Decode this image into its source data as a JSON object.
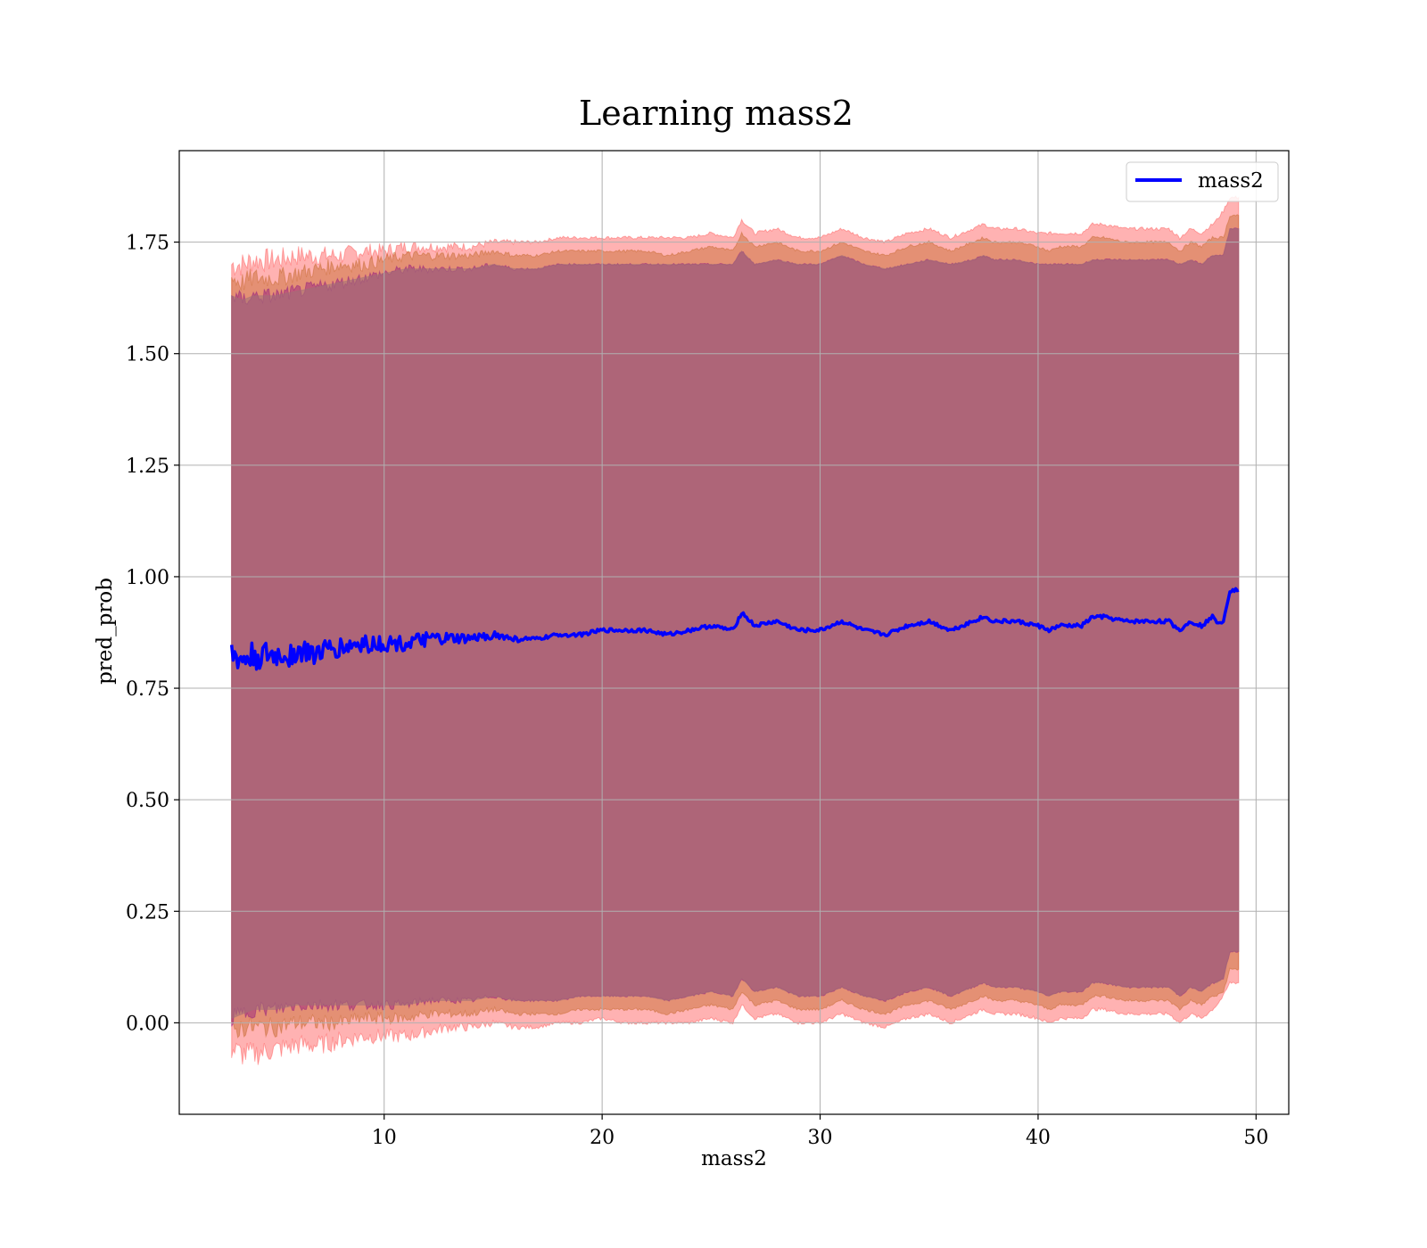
{
  "chart_data": {
    "type": "line",
    "title": "Learning mass2",
    "xlabel": "mass2",
    "ylabel": "pred_prob",
    "xlim": [
      0.6,
      51.5
    ],
    "ylim": [
      -0.205,
      1.955
    ],
    "xticks": [
      10,
      20,
      30,
      40,
      50
    ],
    "xtick_labels": [
      "10",
      "20",
      "30",
      "40",
      "50"
    ],
    "yticks": [
      0.0,
      0.25,
      0.5,
      0.75,
      1.0,
      1.25,
      1.5,
      1.75
    ],
    "ytick_labels": [
      "0.00",
      "0.25",
      "0.50",
      "0.75",
      "1.00",
      "1.25",
      "1.50",
      "1.75"
    ],
    "grid": true,
    "legend": {
      "placement": "upper right"
    },
    "series": [
      {
        "name": "mass2",
        "color": "#0000ff",
        "x": [
          3.0,
          3.5,
          4.0,
          5.0,
          6.0,
          7.0,
          8.0,
          9.0,
          10.0,
          11.0,
          12.0,
          13.0,
          14.0,
          15.0,
          16.0,
          17.0,
          18.0,
          19.0,
          20.0,
          21.0,
          22.0,
          23.0,
          24.0,
          25.0,
          26.0,
          26.4,
          27.0,
          28.0,
          29.0,
          30.0,
          31.0,
          32.0,
          33.0,
          34.0,
          35.0,
          36.0,
          37.0,
          37.5,
          38.0,
          39.0,
          40.0,
          40.5,
          41.0,
          42.0,
          42.5,
          43.0,
          44.0,
          45.0,
          46.0,
          46.5,
          47.0,
          47.5,
          48.0,
          48.2,
          48.5,
          48.8,
          49.2
        ],
        "y": [
          0.82,
          0.81,
          0.82,
          0.82,
          0.83,
          0.83,
          0.84,
          0.85,
          0.85,
          0.85,
          0.86,
          0.86,
          0.86,
          0.87,
          0.86,
          0.86,
          0.87,
          0.87,
          0.88,
          0.88,
          0.88,
          0.87,
          0.88,
          0.89,
          0.88,
          0.92,
          0.89,
          0.9,
          0.88,
          0.88,
          0.9,
          0.88,
          0.87,
          0.89,
          0.9,
          0.88,
          0.9,
          0.91,
          0.9,
          0.9,
          0.89,
          0.88,
          0.89,
          0.89,
          0.91,
          0.91,
          0.9,
          0.9,
          0.9,
          0.88,
          0.9,
          0.89,
          0.91,
          0.9,
          0.9,
          0.97,
          0.97
        ],
        "band_1sd_upper": [
          1.63,
          1.62,
          1.63,
          1.63,
          1.64,
          1.65,
          1.66,
          1.67,
          1.68,
          1.69,
          1.69,
          1.69,
          1.69,
          1.7,
          1.69,
          1.69,
          1.7,
          1.7,
          1.7,
          1.7,
          1.7,
          1.7,
          1.7,
          1.7,
          1.7,
          1.73,
          1.7,
          1.71,
          1.7,
          1.7,
          1.72,
          1.7,
          1.69,
          1.7,
          1.71,
          1.7,
          1.71,
          1.72,
          1.71,
          1.71,
          1.7,
          1.7,
          1.7,
          1.7,
          1.71,
          1.71,
          1.71,
          1.71,
          1.71,
          1.7,
          1.71,
          1.7,
          1.72,
          1.72,
          1.72,
          1.78,
          1.78
        ],
        "band_1sd_lower": [
          0.01,
          0.02,
          0.03,
          0.03,
          0.04,
          0.04,
          0.04,
          0.04,
          0.04,
          0.04,
          0.05,
          0.05,
          0.05,
          0.06,
          0.05,
          0.05,
          0.05,
          0.06,
          0.06,
          0.06,
          0.06,
          0.05,
          0.06,
          0.07,
          0.06,
          0.1,
          0.07,
          0.08,
          0.06,
          0.06,
          0.08,
          0.06,
          0.05,
          0.07,
          0.08,
          0.06,
          0.08,
          0.09,
          0.08,
          0.08,
          0.07,
          0.06,
          0.07,
          0.07,
          0.09,
          0.09,
          0.08,
          0.08,
          0.08,
          0.06,
          0.08,
          0.07,
          0.09,
          0.09,
          0.1,
          0.16,
          0.16
        ],
        "band_2sd_upper": [
          1.67,
          1.66,
          1.67,
          1.67,
          1.68,
          1.69,
          1.7,
          1.7,
          1.71,
          1.72,
          1.72,
          1.72,
          1.72,
          1.73,
          1.72,
          1.72,
          1.73,
          1.73,
          1.73,
          1.73,
          1.73,
          1.72,
          1.73,
          1.74,
          1.73,
          1.77,
          1.74,
          1.75,
          1.73,
          1.73,
          1.75,
          1.73,
          1.72,
          1.74,
          1.75,
          1.73,
          1.75,
          1.76,
          1.75,
          1.75,
          1.74,
          1.73,
          1.74,
          1.74,
          1.76,
          1.76,
          1.75,
          1.75,
          1.75,
          1.73,
          1.75,
          1.74,
          1.76,
          1.76,
          1.76,
          1.81,
          1.81
        ],
        "band_2sd_lower": [
          -0.02,
          -0.01,
          -0.01,
          -0.01,
          0.0,
          0.0,
          0.0,
          0.01,
          0.01,
          0.01,
          0.02,
          0.02,
          0.02,
          0.03,
          0.02,
          0.02,
          0.02,
          0.03,
          0.03,
          0.03,
          0.03,
          0.02,
          0.03,
          0.04,
          0.03,
          0.07,
          0.04,
          0.05,
          0.03,
          0.03,
          0.05,
          0.03,
          0.02,
          0.04,
          0.05,
          0.03,
          0.05,
          0.06,
          0.05,
          0.05,
          0.04,
          0.03,
          0.04,
          0.04,
          0.06,
          0.06,
          0.05,
          0.05,
          0.05,
          0.03,
          0.05,
          0.04,
          0.06,
          0.06,
          0.07,
          0.12,
          0.12
        ],
        "band_3sd_upper": [
          1.7,
          1.7,
          1.71,
          1.71,
          1.72,
          1.72,
          1.72,
          1.73,
          1.73,
          1.74,
          1.74,
          1.74,
          1.74,
          1.75,
          1.75,
          1.75,
          1.76,
          1.76,
          1.76,
          1.76,
          1.76,
          1.76,
          1.76,
          1.77,
          1.76,
          1.8,
          1.77,
          1.78,
          1.76,
          1.76,
          1.78,
          1.76,
          1.75,
          1.77,
          1.78,
          1.76,
          1.78,
          1.79,
          1.78,
          1.78,
          1.77,
          1.77,
          1.77,
          1.77,
          1.79,
          1.79,
          1.78,
          1.78,
          1.78,
          1.76,
          1.78,
          1.77,
          1.79,
          1.8,
          1.82,
          1.85,
          1.85
        ],
        "band_3sd_lower": [
          -0.06,
          -0.07,
          -0.07,
          -0.06,
          -0.05,
          -0.05,
          -0.04,
          -0.03,
          -0.03,
          -0.03,
          -0.02,
          -0.01,
          -0.01,
          0.0,
          -0.01,
          -0.01,
          0.0,
          0.0,
          0.01,
          0.0,
          0.0,
          0.0,
          0.0,
          0.01,
          0.0,
          0.04,
          0.01,
          0.02,
          0.0,
          0.0,
          0.02,
          0.0,
          -0.01,
          0.01,
          0.02,
          0.0,
          0.02,
          0.03,
          0.02,
          0.02,
          0.01,
          0.0,
          0.01,
          0.01,
          0.03,
          0.03,
          0.02,
          0.02,
          0.02,
          0.0,
          0.02,
          0.01,
          0.03,
          0.04,
          0.06,
          0.09,
          0.09
        ]
      }
    ],
    "band_colors": {
      "band_3sd": "#ff0000",
      "band_2sd": "#b25000",
      "band_1sd": "#800080",
      "base": "#a07078"
    }
  }
}
